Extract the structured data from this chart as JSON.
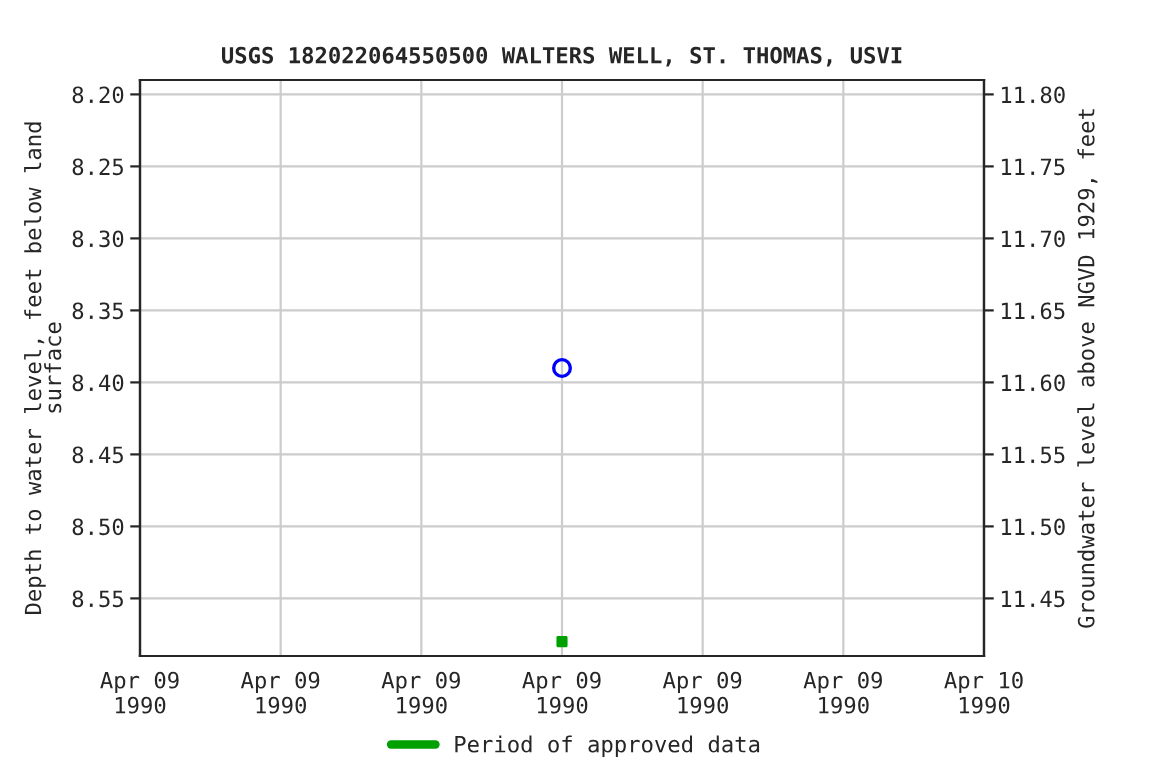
{
  "chart_data": {
    "type": "scatter",
    "title": "USGS 182022064550500 WALTERS WELL, ST. THOMAS, USVI",
    "ylabel": "Depth to water level, feet below land\nsurface",
    "y2label": "Groundwater level above NGVD 1929, feet",
    "series": [
      {
        "color": "#0000ff",
        "marker": "circle",
        "x": [
          "1990-04-09T12:00"
        ],
        "values": [
          8.39
        ]
      },
      {
        "name": "Period of approved data",
        "color": "#00a000",
        "marker": "square",
        "x": [
          "1990-04-09T12:00"
        ],
        "values": [
          8.58
        ]
      }
    ],
    "xlim": [
      "1990-04-09T00:00",
      "1990-04-10T00:00"
    ],
    "xticks": [
      {
        "value": "1990-04-09T00:00",
        "label": "Apr 09\n1990"
      },
      {
        "value": "1990-04-09T04:00",
        "label": "Apr 09\n1990"
      },
      {
        "value": "1990-04-09T08:00",
        "label": "Apr 09\n1990"
      },
      {
        "value": "1990-04-09T12:00",
        "label": "Apr 09\n1990"
      },
      {
        "value": "1990-04-09T16:00",
        "label": "Apr 09\n1990"
      },
      {
        "value": "1990-04-09T20:00",
        "label": "Apr 09\n1990"
      },
      {
        "value": "1990-04-10T00:00",
        "label": "Apr 10\n1990"
      }
    ],
    "ylim": [
      8.59,
      8.19
    ],
    "yticks": [
      {
        "value": 8.2,
        "label": "8.20"
      },
      {
        "value": 8.25,
        "label": "8.25"
      },
      {
        "value": 8.3,
        "label": "8.30"
      },
      {
        "value": 8.35,
        "label": "8.35"
      },
      {
        "value": 8.4,
        "label": "8.40"
      },
      {
        "value": 8.45,
        "label": "8.45"
      },
      {
        "value": 8.5,
        "label": "8.50"
      },
      {
        "value": 8.55,
        "label": "8.55"
      }
    ],
    "y2lim": [
      11.41,
      11.81
    ],
    "y2ticks": [
      {
        "value": 11.45,
        "label": "11.45"
      },
      {
        "value": 11.5,
        "label": "11.50"
      },
      {
        "value": 11.55,
        "label": "11.55"
      },
      {
        "value": 11.6,
        "label": "11.60"
      },
      {
        "value": 11.65,
        "label": "11.65"
      },
      {
        "value": 11.7,
        "label": "11.70"
      },
      {
        "value": 11.75,
        "label": "11.75"
      },
      {
        "value": 11.8,
        "label": "11.80"
      }
    ],
    "grid": true,
    "legend": "bottom"
  }
}
